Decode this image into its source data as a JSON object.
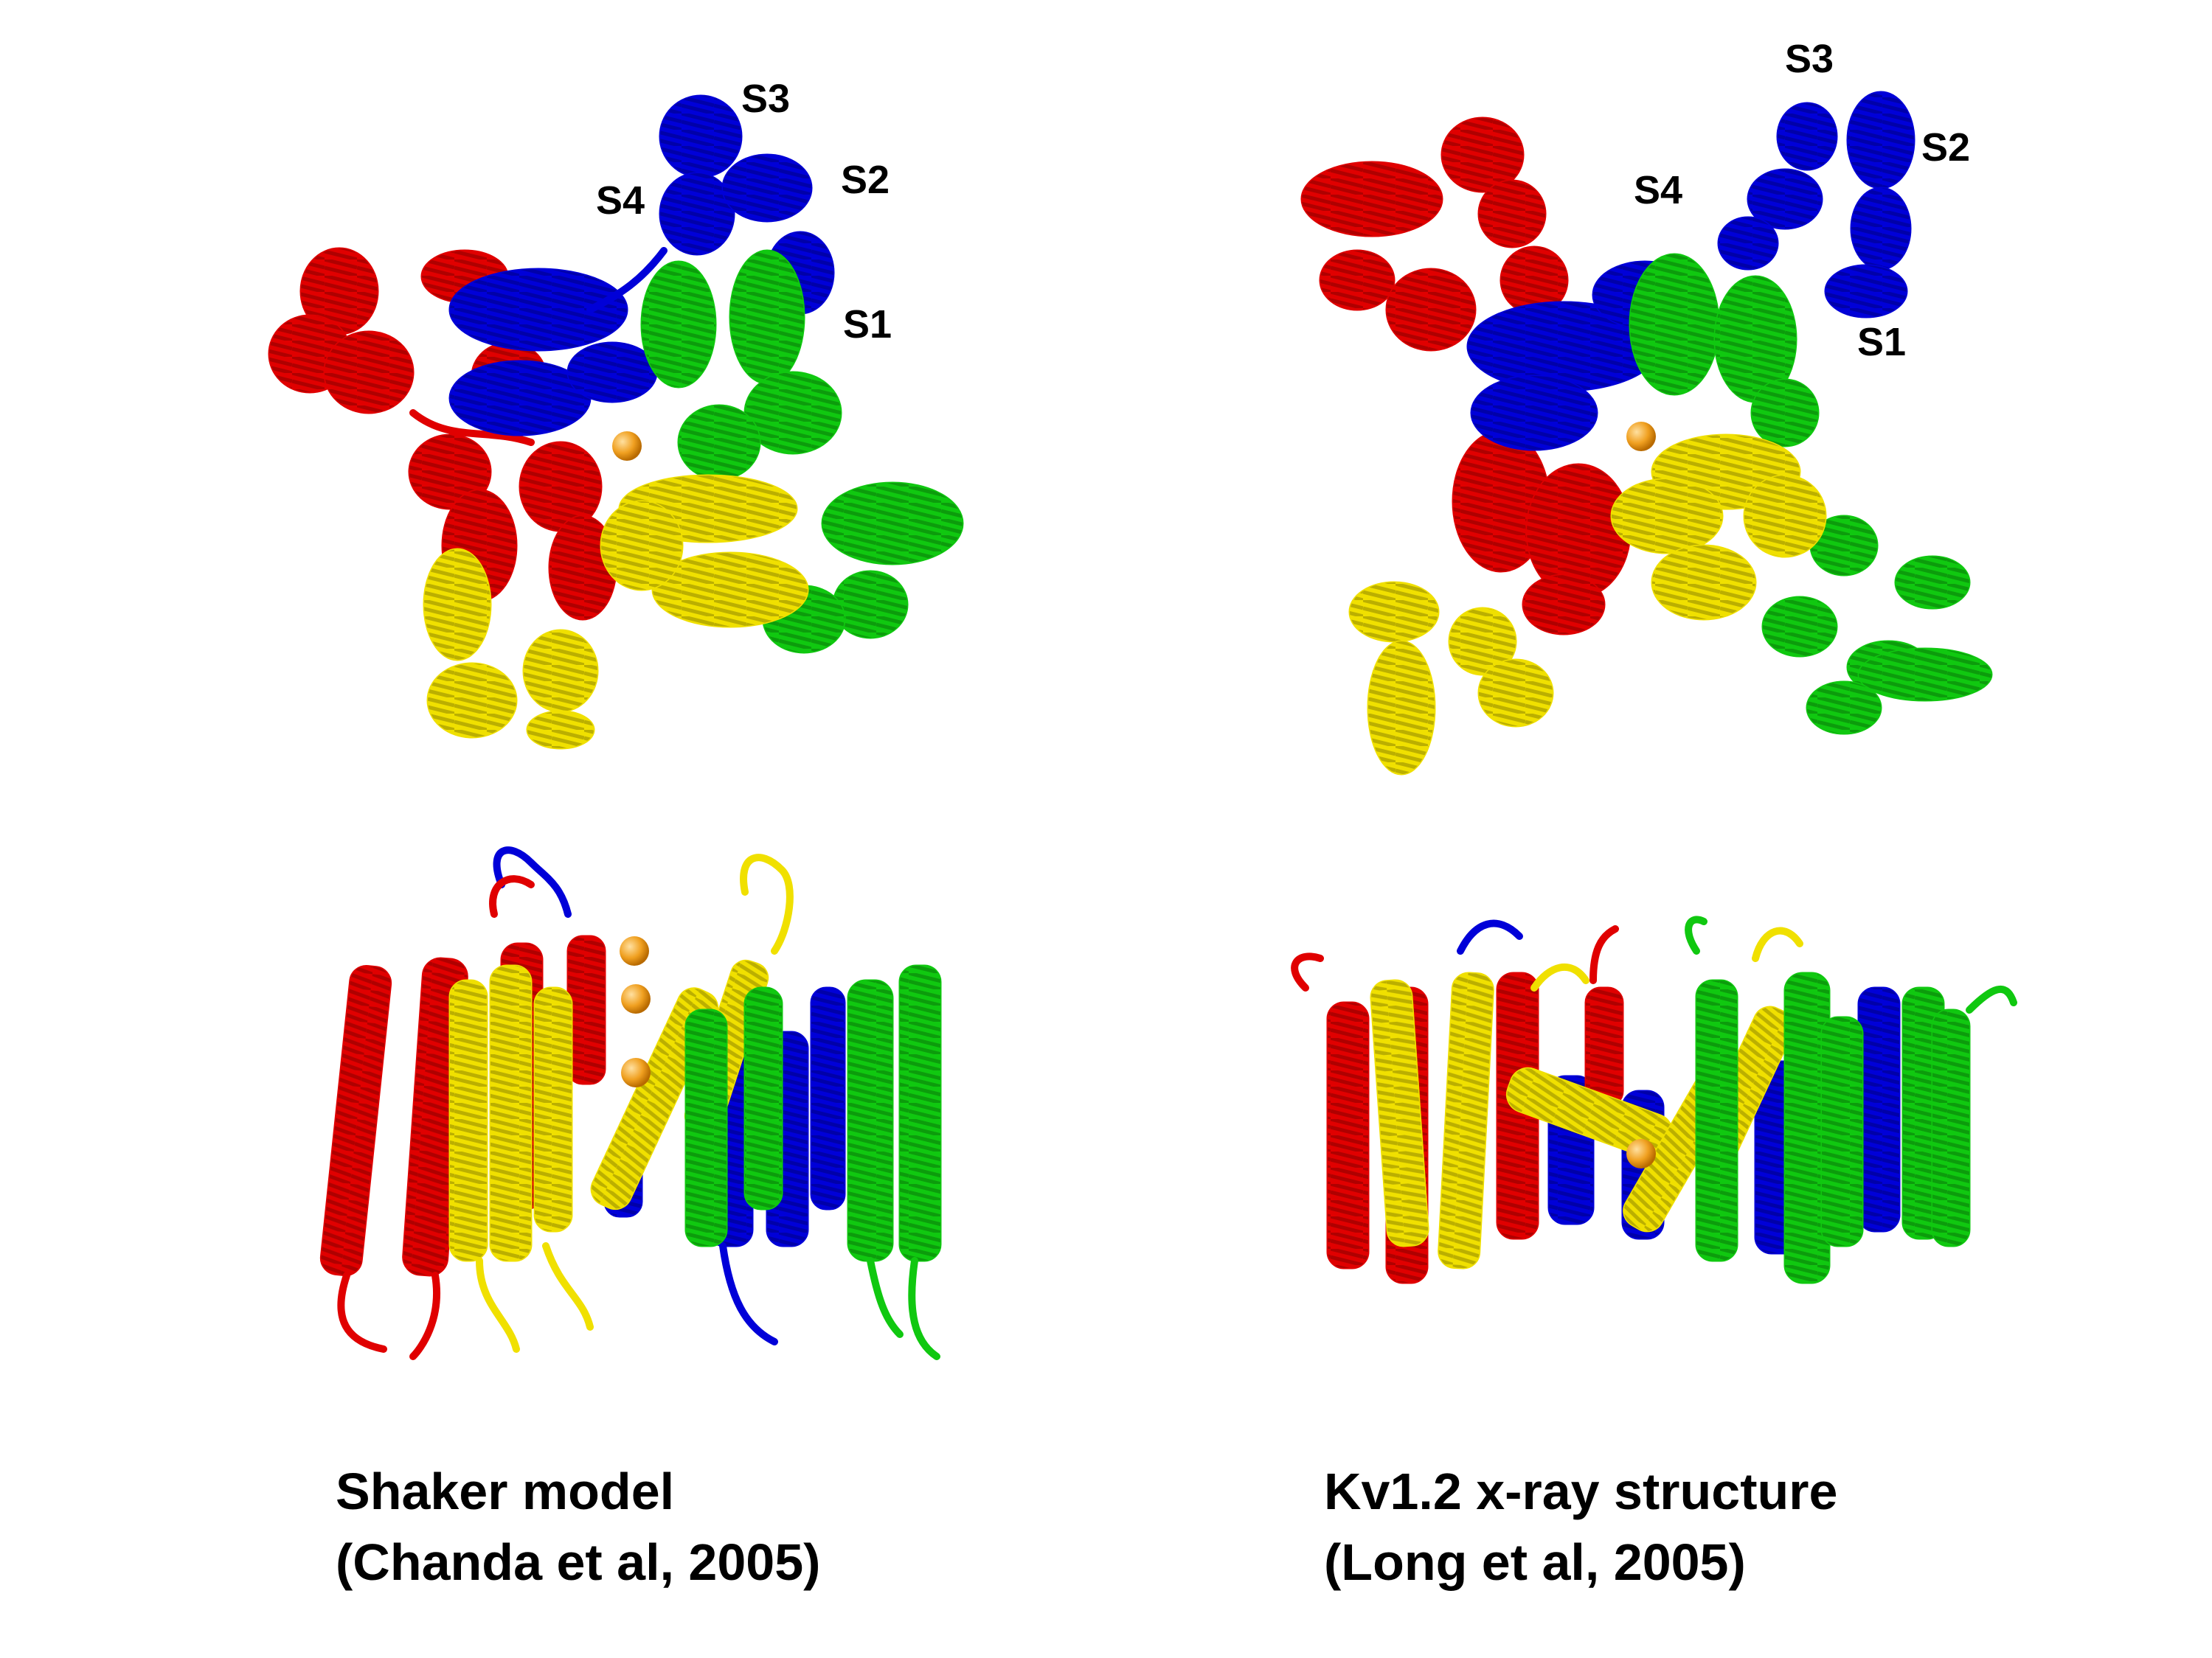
{
  "colors": {
    "subunit_red": "#e00000",
    "subunit_blue": "#0000d8",
    "subunit_green": "#10c810",
    "subunit_yellow": "#f0e000",
    "ion": "#f0a020",
    "text": "#000000",
    "background": "#ffffff"
  },
  "panels": {
    "shaker_top": {
      "labels": {
        "s1": "S1",
        "s2": "S2",
        "s3": "S3",
        "s4": "S4"
      }
    },
    "kv12_top": {
      "labels": {
        "s1": "S1",
        "s2": "S2",
        "s3": "S3",
        "s4": "S4"
      }
    }
  },
  "captions": {
    "left": {
      "line1": "Shaker model",
      "line2": "(Chanda et al, 2005)"
    },
    "right": {
      "line1": "Kv1.2 x-ray structure",
      "line2": "(Long et al, 2005)"
    }
  }
}
